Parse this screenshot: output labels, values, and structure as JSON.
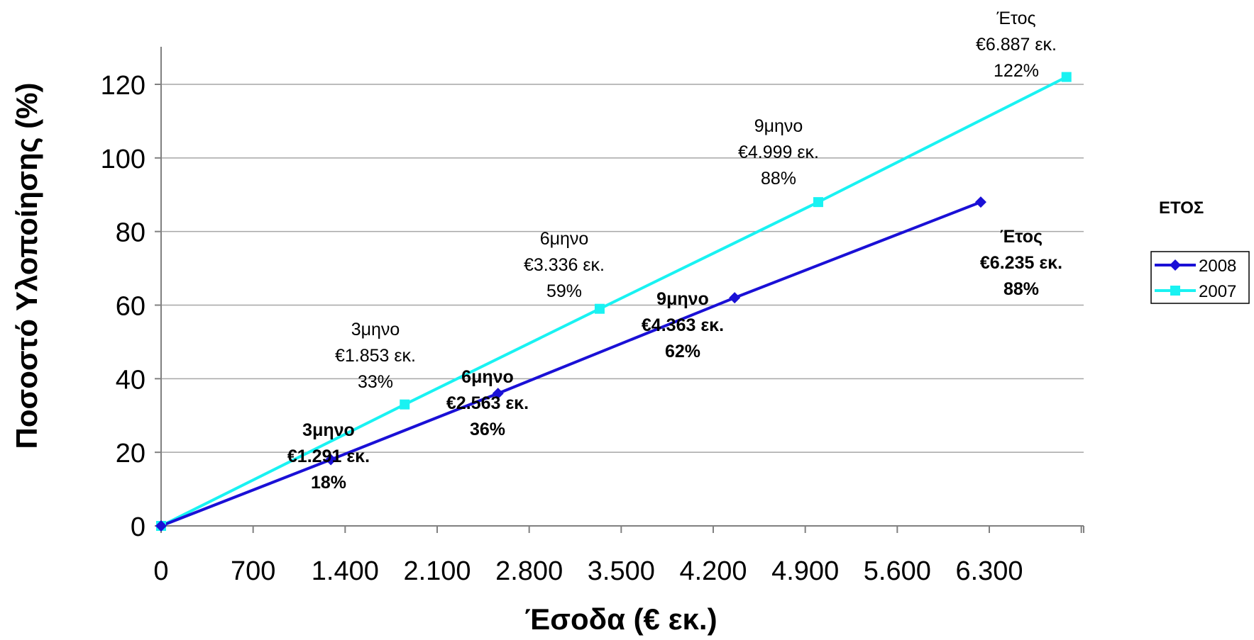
{
  "chart_data": {
    "type": "line",
    "xlabel": "Έσοδα (€ εκ.)",
    "ylabel": "Ποσοστό Υλοποίησης (%)",
    "xlim": [
      0,
      7000
    ],
    "ylim": [
      0,
      130
    ],
    "x_ticks": [
      0,
      700,
      1400,
      2100,
      2800,
      3500,
      4200,
      4900,
      5600,
      6300
    ],
    "x_tick_labels": [
      "0",
      "700",
      "1.400",
      "2.100",
      "2.800",
      "3.500",
      "4.200",
      "4.900",
      "5.600",
      "6.300"
    ],
    "y_ticks": [
      0,
      20,
      40,
      60,
      80,
      100,
      120
    ],
    "y_tick_labels": [
      "0",
      "20",
      "40",
      "60",
      "80",
      "100",
      "120"
    ],
    "grid": "horizontal",
    "legend": {
      "title": "ΕΤΟΣ",
      "placement": "right"
    },
    "series": [
      {
        "name": "2008",
        "color": "#1a10d6",
        "marker": "diamond",
        "bold_labels": true,
        "points": [
          {
            "x": 0,
            "y": 0,
            "label": []
          },
          {
            "x": 1291,
            "y": 18,
            "label": [
              "3μηνο",
              "€1.291 εκ.",
              "18%"
            ]
          },
          {
            "x": 2563,
            "y": 36,
            "label": [
              "6μηνο",
              "€2.563 εκ.",
              "36%"
            ]
          },
          {
            "x": 4363,
            "y": 62,
            "label": [
              "9μηνο",
              "€4.363 εκ.",
              "62%"
            ]
          },
          {
            "x": 6235,
            "y": 88,
            "label": [
              "Έτος",
              "€6.235 εκ.",
              "88%"
            ]
          }
        ]
      },
      {
        "name": "2007",
        "color": "#19f2f2",
        "marker": "square",
        "bold_labels": false,
        "points": [
          {
            "x": 0,
            "y": 0,
            "label": []
          },
          {
            "x": 1853,
            "y": 33,
            "label": [
              "3μηνο",
              "€1.853 εκ.",
              "33%"
            ]
          },
          {
            "x": 3336,
            "y": 59,
            "label": [
              "6μηνο",
              "€3.336 εκ.",
              "59%"
            ]
          },
          {
            "x": 4999,
            "y": 88,
            "label": [
              "9μηνο",
              "€4.999 εκ.",
              "88%"
            ]
          },
          {
            "x": 6887,
            "y": 122,
            "label": [
              "Έτος",
              "€6.887 εκ.",
              "122%"
            ]
          }
        ]
      }
    ]
  }
}
